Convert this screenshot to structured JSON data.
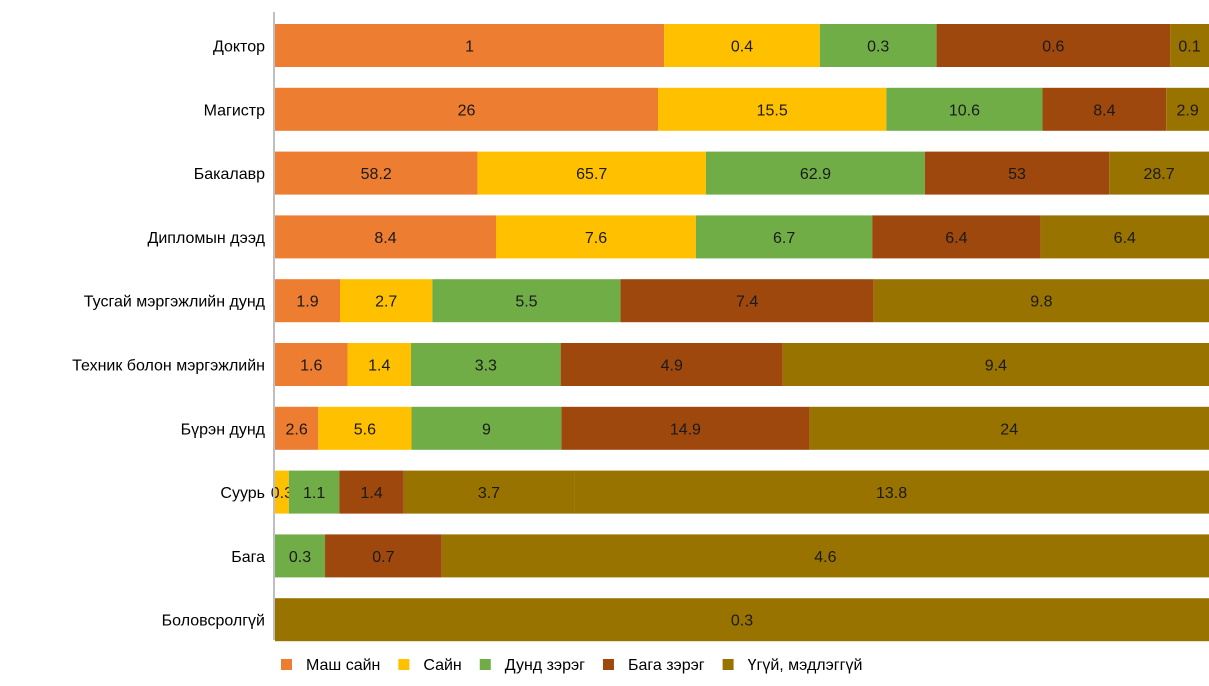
{
  "chart_data": {
    "type": "bar",
    "orientation": "horizontal",
    "stacking": "100%-stacked",
    "categories": [
      "Доктор",
      "Магистр",
      "Бакалавр",
      "Дипломын дээд",
      "Тусгай мэргэжлийн дунд",
      "Техник болон мэргэжлийн",
      "Бүрэн дунд",
      "Суурь",
      "Бага",
      "Боловсролгүй"
    ],
    "series": [
      {
        "name": "Маш сайн",
        "color": "#ED7D31",
        "values": [
          1,
          26,
          58.2,
          8.4,
          1.9,
          1.6,
          2.6,
          0,
          0,
          0
        ]
      },
      {
        "name": "Сайн",
        "color": "#FFC000",
        "values": [
          0.4,
          15.5,
          65.7,
          7.6,
          2.7,
          1.4,
          5.6,
          0.3,
          0,
          0
        ]
      },
      {
        "name": "Дунд зэрэг",
        "color": "#70AD47",
        "values": [
          0.3,
          10.6,
          62.9,
          6.7,
          5.5,
          3.3,
          9,
          1.1,
          0.3,
          0
        ]
      },
      {
        "name": "Бага зэрэг",
        "color": "#9E480E",
        "values": [
          0.6,
          8.4,
          53,
          6.4,
          7.4,
          4.9,
          14.9,
          1.4,
          0.7,
          0
        ]
      },
      {
        "name": "Үгүй, мэдлэггүй",
        "color": "#997300",
        "values": [
          0.1,
          2.9,
          28.7,
          6.4,
          9.8,
          9.4,
          24,
          3.7,
          4.6,
          0.3
        ]
      }
    ],
    "extra_segments": [
      {
        "category": "Суурь",
        "value": 13.8,
        "color": "#997300"
      }
    ],
    "bar_label_texts": [
      [
        "1",
        "0.4",
        "0.3",
        "0.6",
        "0.1"
      ],
      [
        "26",
        "15.5",
        "10.6",
        "8.4",
        "2.9"
      ],
      [
        "58.2",
        "65.7",
        "62.9",
        "53",
        "28.7"
      ],
      [
        "8.4",
        "7.6",
        "6.7",
        "6.4",
        "6.4"
      ],
      [
        "1.9",
        "2.7",
        "5.5",
        "7.4",
        "9.8"
      ],
      [
        "1.6",
        "1.4",
        "3.3",
        "4.9",
        "9.4"
      ],
      [
        "2.6",
        "5.6",
        "9",
        "14.9",
        "24"
      ],
      [
        "",
        "0.3",
        "1.1",
        "1.4",
        "3.7",
        "13.8"
      ],
      [
        "",
        "",
        "0.3",
        "0.7",
        "4.6"
      ],
      [
        "",
        "",
        "",
        "",
        "0.3"
      ]
    ],
    "legend": {
      "position": "bottom"
    },
    "grid": false,
    "title": "",
    "xlabel": "",
    "ylabel": ""
  }
}
